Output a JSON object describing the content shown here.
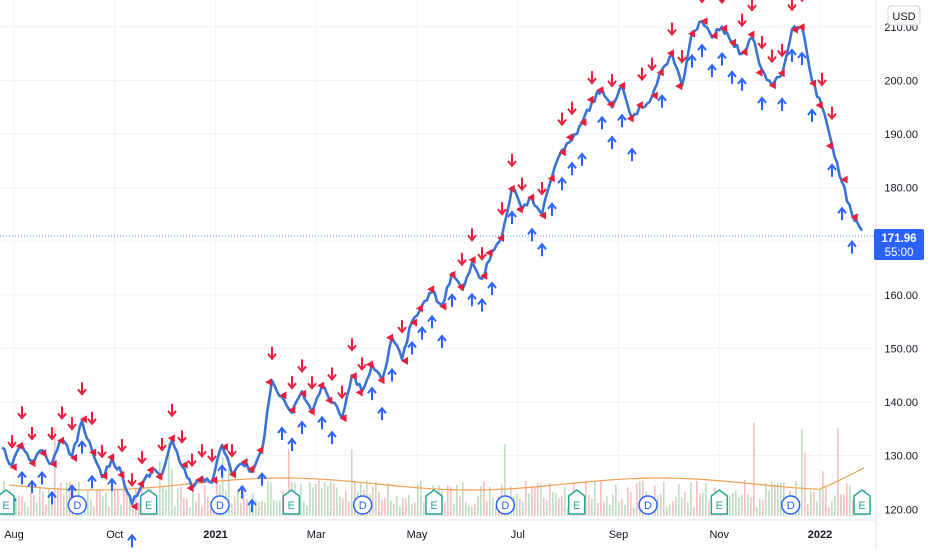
{
  "chart_data": {
    "type": "line",
    "currency": "USD",
    "last_price": "171.96",
    "countdown": "55:00",
    "ylim": [
      118,
      215
    ],
    "y_ticks": [
      "210.00",
      "200.00",
      "190.00",
      "180.00",
      "170.00",
      "160.00",
      "150.00",
      "140.00",
      "130.00",
      "120.00"
    ],
    "x_ticks": [
      {
        "label": "Aug",
        "bold": false
      },
      {
        "label": "Oct",
        "bold": false
      },
      {
        "label": "2021",
        "bold": true
      },
      {
        "label": "Mar",
        "bold": false
      },
      {
        "label": "May",
        "bold": false
      },
      {
        "label": "Jul",
        "bold": false
      },
      {
        "label": "Sep",
        "bold": false
      },
      {
        "label": "Nov",
        "bold": false
      },
      {
        "label": "2022",
        "bold": true
      }
    ],
    "grid": true,
    "colors": {
      "price_line": "#3a73d4",
      "sell_marker": "#e91e3c",
      "buy_marker": "#2962ff",
      "volume_up": "#a5d6a7",
      "volume_down": "#f4a9a9",
      "volume_ma": "#f0a050",
      "last_price_badge": "#2962ff",
      "earnings_badge": "#26a69a",
      "dividend_badge": "#2962ff"
    },
    "series": [
      {
        "values": [
          131.5,
          128.2,
          132.0,
          129.0,
          131.0,
          128.5,
          133.0,
          130.0,
          136.5,
          131.0,
          126.0,
          129.5,
          126.5,
          121.0,
          124.5,
          127.5,
          126.5,
          133.0,
          128.0,
          124.0,
          126.0,
          125.0,
          132.0,
          126.5,
          128.5,
          127.0,
          131.0,
          144.0,
          141.0,
          138.0,
          142.0,
          138.0,
          143.0,
          140.0,
          137.0,
          145.0,
          142.0,
          147.0,
          144.0,
          152.0,
          148.0,
          155.0,
          158.0,
          160.5,
          158.0,
          164.0,
          161.0,
          166.0,
          163.0,
          168.0,
          171.0,
          180.0,
          176.0,
          178.0,
          175.0,
          182.0,
          187.0,
          189.0,
          192.0,
          196.0,
          198.5,
          195.0,
          199.0,
          193.0,
          195.0,
          197.0,
          202.0,
          205.0,
          199.0,
          209.0,
          211.0,
          208.0,
          210.0,
          207.0,
          205.0,
          208.0,
          202.0,
          199.0,
          201.0,
          209.5,
          210.0,
          200.0,
          195.0,
          188.0,
          181.0,
          175.0,
          171.96
        ]
      }
    ],
    "events": [
      {
        "type": "E",
        "label": "E"
      },
      {
        "type": "D",
        "label": "D"
      },
      {
        "type": "E",
        "label": "E"
      },
      {
        "type": "D",
        "label": "D"
      },
      {
        "type": "E",
        "label": "E"
      },
      {
        "type": "D",
        "label": "D"
      },
      {
        "type": "E",
        "label": "E"
      },
      {
        "type": "D",
        "label": "D"
      },
      {
        "type": "E",
        "label": "E"
      },
      {
        "type": "D",
        "label": "D"
      },
      {
        "type": "E",
        "label": "E"
      },
      {
        "type": "D",
        "label": "D"
      },
      {
        "type": "E",
        "label": "E"
      }
    ]
  }
}
